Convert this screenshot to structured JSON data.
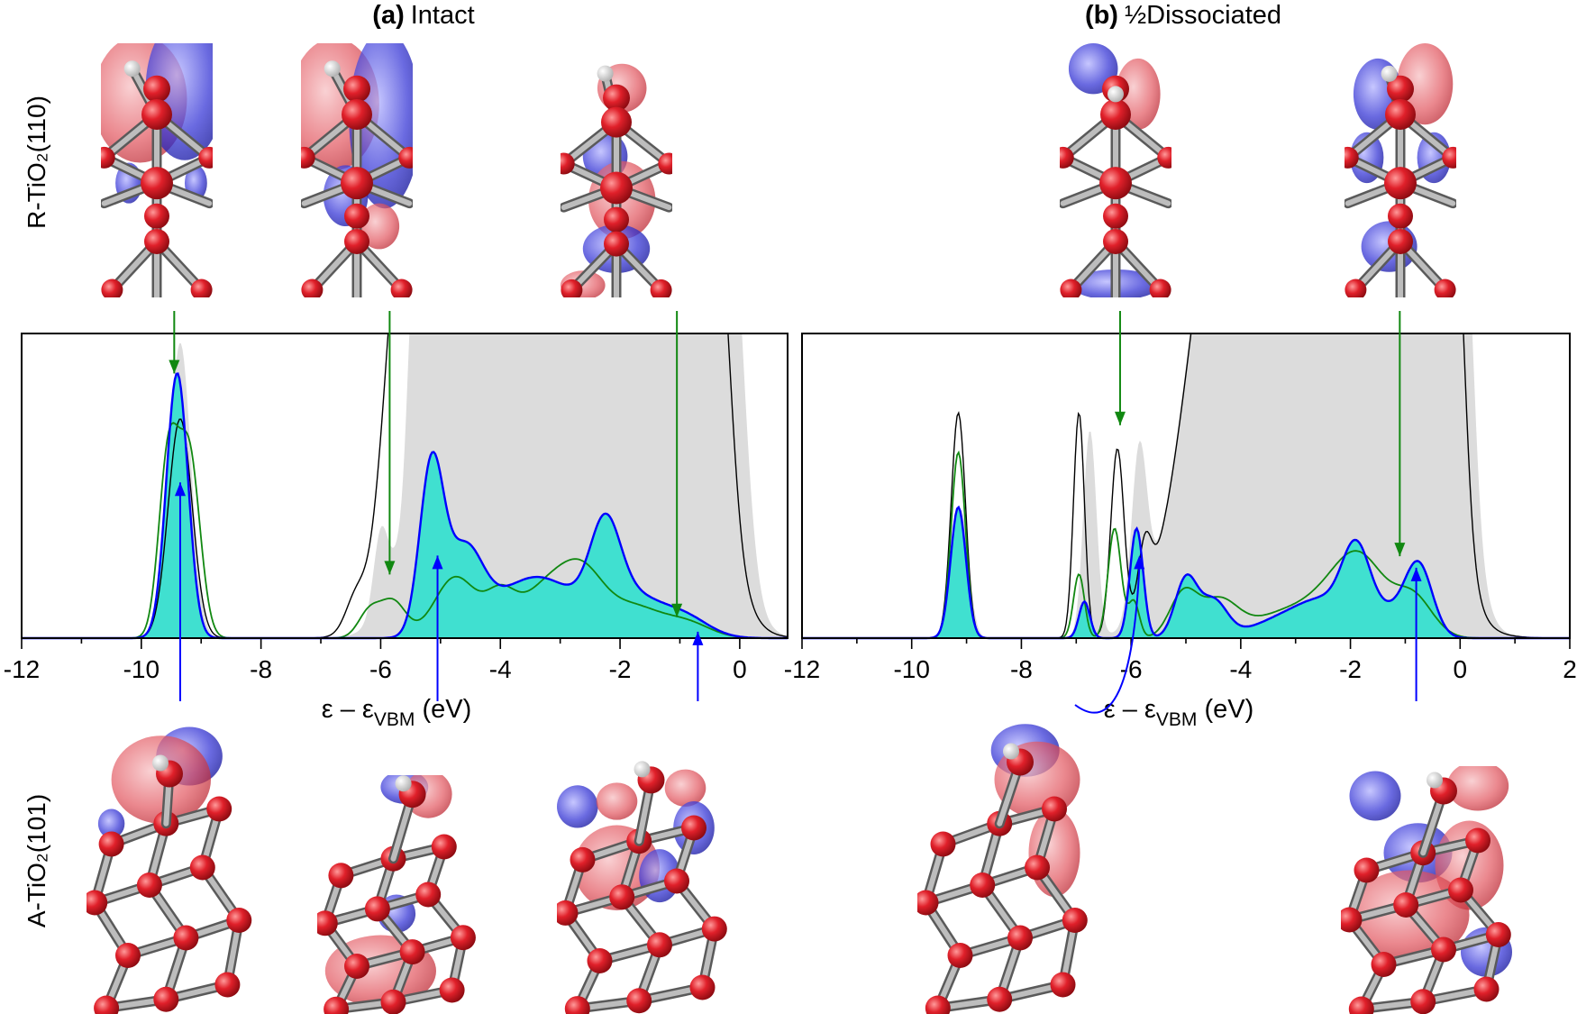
{
  "titles": {
    "a_letter": "(a)",
    "a_text": "Intact",
    "b_letter": "(b)",
    "b_text": "½Dissociated"
  },
  "row_labels": {
    "top": "R-TiO₂(110)",
    "bottom": "A-TiO₂(101)"
  },
  "colors": {
    "fill_gray": "#dcdcdc",
    "fill_cyan": "#40e0d0",
    "line_blue": "#0000ff",
    "line_green": "#118811",
    "line_black": "#000000",
    "oxygen": "#dd1f2a",
    "titanium": "#9a9a9a",
    "hydrogen": "#f4f4f4",
    "orbital_red": "#e2555e",
    "orbital_blue": "#3838d6"
  },
  "icons": {
    "structure": "ball-and-stick-orbital-image",
    "arrow": "arrow-pointer"
  },
  "chart_data": [
    {
      "id": "a",
      "type": "line",
      "xlabel_main": "ε – ε",
      "xlabel_sub": "VBM",
      "xlabel_unit": " (eV)",
      "xlim": [
        -12,
        0.8
      ],
      "ylim": [
        0,
        1
      ],
      "xticks": [
        -12,
        -10,
        -8,
        -6,
        -4,
        -2,
        0
      ],
      "xtick_labels": [
        "-12",
        "-10",
        "-8",
        "-6",
        "-4",
        "-2",
        "0"
      ],
      "grid": false,
      "series_peaks": {
        "gray_fill": [
          [
            -9.35,
            0.18,
            0.97
          ],
          [
            -6.0,
            0.12,
            0.25
          ],
          [
            -5.45,
            0.1,
            0.6
          ],
          [
            -4.6,
            0.6,
            1.7
          ],
          [
            -2.5,
            0.9,
            1.9
          ],
          [
            -0.7,
            0.45,
            1.3
          ],
          [
            -0.15,
            0.22,
            0.9
          ]
        ],
        "cyan_fill": [
          [
            -9.4,
            0.18,
            0.87
          ],
          [
            -5.15,
            0.2,
            0.55
          ],
          [
            -4.6,
            0.3,
            0.26
          ],
          [
            -3.4,
            0.7,
            0.2
          ],
          [
            -2.25,
            0.25,
            0.27
          ],
          [
            -1.8,
            0.5,
            0.13
          ],
          [
            -0.9,
            0.4,
            0.06
          ]
        ],
        "green_line": [
          [
            -9.55,
            0.16,
            0.58
          ],
          [
            -9.2,
            0.18,
            0.6
          ],
          [
            -6.2,
            0.18,
            0.08
          ],
          [
            -5.8,
            0.22,
            0.12
          ],
          [
            -4.75,
            0.35,
            0.2
          ],
          [
            -4.0,
            0.25,
            0.12
          ],
          [
            -3.2,
            0.45,
            0.17
          ],
          [
            -2.6,
            0.35,
            0.16
          ],
          [
            -1.8,
            0.45,
            0.1
          ],
          [
            -0.9,
            0.4,
            0.05
          ]
        ],
        "black_line": [
          [
            -9.35,
            0.2,
            0.72
          ],
          [
            -6.4,
            0.18,
            0.12
          ],
          [
            -5.9,
            0.2,
            0.42
          ],
          [
            -5.6,
            0.2,
            0.9
          ],
          [
            -4.6,
            0.65,
            1.6
          ],
          [
            -2.5,
            0.9,
            1.9
          ],
          [
            -1.0,
            0.5,
            1.5
          ],
          [
            -0.35,
            0.2,
            0.7
          ]
        ]
      },
      "arrows_top": [
        {
          "x": -9.45,
          "y": 0.86,
          "color": "green"
        },
        {
          "x": -5.85,
          "y": 0.2,
          "color": "green"
        },
        {
          "x": -1.05,
          "y": 0.06,
          "color": "green"
        }
      ],
      "arrows_bottom": [
        {
          "x": -9.35,
          "y": 0.52,
          "color": "blue"
        },
        {
          "x": -5.05,
          "y": 0.28,
          "color": "blue"
        },
        {
          "x": -0.7,
          "y": 0.03,
          "color": "blue"
        }
      ]
    },
    {
      "id": "b",
      "type": "line",
      "xlabel_main": "ε – ε",
      "xlabel_sub": "VBM",
      "xlabel_unit": " (eV)",
      "xlim": [
        -12,
        2
      ],
      "ylim": [
        0,
        1
      ],
      "xticks": [
        -12,
        -10,
        -8,
        -6,
        -4,
        -2,
        0,
        2
      ],
      "xtick_labels": [
        "-12",
        "-10",
        "-8",
        "-6",
        "-4",
        "-2",
        "0",
        "2"
      ],
      "grid": false,
      "series_peaks": {
        "gray_fill": [
          [
            -9.1,
            0.14,
            0.42
          ],
          [
            -6.75,
            0.12,
            0.68
          ],
          [
            -5.85,
            0.14,
            0.54
          ],
          [
            -4.2,
            0.7,
            1.7
          ],
          [
            -2.0,
            0.9,
            1.8
          ],
          [
            -0.3,
            0.35,
            1.5
          ],
          [
            0.1,
            0.15,
            0.6
          ]
        ],
        "cyan_fill": [
          [
            -9.15,
            0.14,
            0.43
          ],
          [
            -6.85,
            0.1,
            0.12
          ],
          [
            -5.9,
            0.12,
            0.36
          ],
          [
            -5.0,
            0.2,
            0.19
          ],
          [
            -4.5,
            0.25,
            0.12
          ],
          [
            -3.2,
            0.6,
            0.06
          ],
          [
            -1.9,
            0.25,
            0.23
          ],
          [
            -2.4,
            0.5,
            0.1
          ],
          [
            -0.75,
            0.25,
            0.22
          ],
          [
            -1.3,
            0.4,
            0.08
          ]
        ],
        "green_line": [
          [
            -9.15,
            0.13,
            0.61
          ],
          [
            -6.95,
            0.1,
            0.21
          ],
          [
            -6.3,
            0.12,
            0.36
          ],
          [
            -5.95,
            0.1,
            0.12
          ],
          [
            -5.05,
            0.25,
            0.14
          ],
          [
            -4.4,
            0.35,
            0.12
          ],
          [
            -3.2,
            0.6,
            0.08
          ],
          [
            -1.8,
            0.45,
            0.24
          ],
          [
            -2.4,
            0.45,
            0.08
          ],
          [
            -0.85,
            0.35,
            0.13
          ]
        ],
        "black_line": [
          [
            -9.15,
            0.13,
            0.74
          ],
          [
            -6.95,
            0.1,
            0.74
          ],
          [
            -6.25,
            0.12,
            0.6
          ],
          [
            -5.75,
            0.12,
            0.2
          ],
          [
            -4.2,
            0.7,
            1.65
          ],
          [
            -2.0,
            0.9,
            1.8
          ],
          [
            -0.5,
            0.35,
            1.5
          ],
          [
            -0.05,
            0.15,
            0.6
          ]
        ]
      },
      "arrows_top": [
        {
          "x": -6.2,
          "y": 0.69,
          "color": "green"
        },
        {
          "x": -1.1,
          "y": 0.26,
          "color": "green"
        }
      ],
      "arrows_bottom": [
        {
          "x": -5.85,
          "y": 0.28,
          "color": "blue"
        },
        {
          "x": -0.8,
          "y": 0.24,
          "color": "blue"
        }
      ]
    }
  ]
}
